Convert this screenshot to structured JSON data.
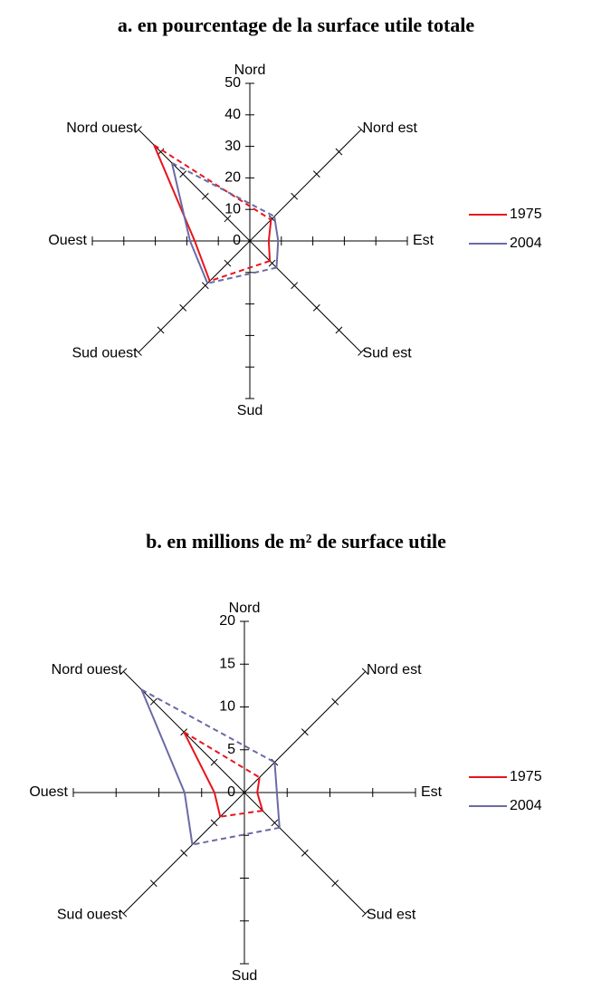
{
  "chart_data": [
    {
      "type": "radar",
      "title": "a. en pourcentage de la surface utile totale",
      "categories": [
        "Nord",
        "Nord est",
        "Est",
        "Sud est",
        "Sud",
        "Sud ouest",
        "Ouest",
        "Nord ouest"
      ],
      "series": [
        {
          "name": "1975",
          "color": "#e8141c",
          "values": [
            null,
            9.5,
            6,
            9,
            null,
            18,
            17.5,
            43
          ]
        },
        {
          "name": "2004",
          "color": "#6a6aa6",
          "values": [
            null,
            11,
            9,
            12,
            null,
            19,
            19,
            35
          ]
        }
      ],
      "ylim": [
        0,
        50
      ],
      "yticks": [
        0,
        10,
        20,
        30,
        40,
        50
      ]
    },
    {
      "type": "radar",
      "title": "b. en millions de m² de surface utile",
      "categories": [
        "Nord",
        "Nord est",
        "Est",
        "Sud est",
        "Sud",
        "Sud ouest",
        "Ouest",
        "Nord ouest"
      ],
      "series": [
        {
          "name": "1975",
          "color": "#e8141c",
          "values": [
            null,
            2.5,
            1.5,
            3,
            null,
            4,
            3.5,
            10
          ]
        },
        {
          "name": "2004",
          "color": "#6a6aa6",
          "values": [
            null,
            5,
            3.8,
            5.8,
            null,
            8.6,
            7,
            17
          ]
        }
      ],
      "ylim": [
        0,
        20
      ],
      "yticks": [
        0,
        5,
        10,
        15,
        20
      ]
    }
  ]
}
